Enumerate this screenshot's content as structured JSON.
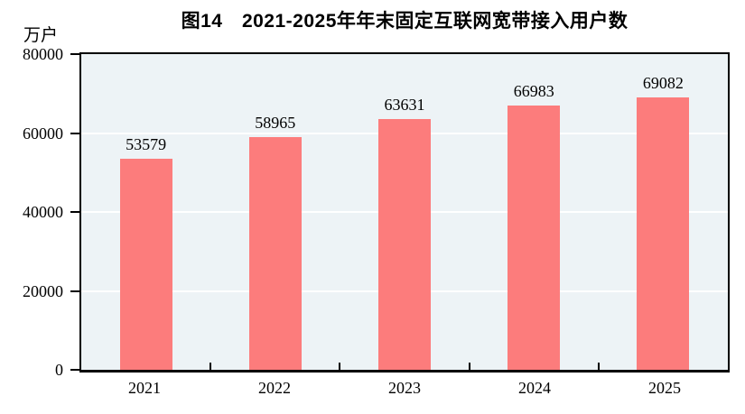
{
  "chart_data": {
    "type": "bar",
    "title": "图14　2021-2025年年末固定互联网宽带接入用户数",
    "unit_label": "万户",
    "categories": [
      "2021",
      "2022",
      "2023",
      "2024",
      "2025"
    ],
    "values": [
      53579,
      58965,
      63631,
      66983,
      69082
    ],
    "yticks": [
      "0",
      "20000",
      "40000",
      "60000",
      "80000"
    ],
    "ytick_values": [
      0,
      20000,
      40000,
      60000,
      80000
    ],
    "ylim": [
      0,
      80000
    ],
    "xlabel": "",
    "ylabel": "万户",
    "grid": "horizontal white gridlines",
    "legend": "none",
    "colors": {
      "bar": "#FC7C7C",
      "plot_background": "#EDF3F6",
      "gridline": "#FFFFFF",
      "axis": "#000000",
      "text": "#000000"
    }
  }
}
